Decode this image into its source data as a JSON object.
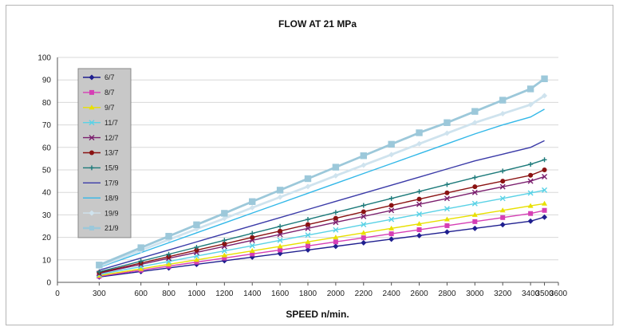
{
  "chart_data": {
    "type": "line",
    "title": "FLOW AT 21 MPa",
    "xlabel": "SPEED n/min.",
    "ylabel": "",
    "xlim": [
      0,
      3600
    ],
    "ylim": [
      0,
      100
    ],
    "x_ticks": [
      "0",
      "300",
      "600",
      "800",
      "1000",
      "1200",
      "1400",
      "1600",
      "1800",
      "2000",
      "2200",
      "2400",
      "2600",
      "2800",
      "3000",
      "3200",
      "3400",
      "3500",
      "3600"
    ],
    "y_ticks": [
      0,
      10,
      20,
      30,
      40,
      50,
      60,
      70,
      80,
      90,
      100
    ],
    "grid": "horizontal",
    "legend_position": "top-left",
    "x": [
      300,
      600,
      800,
      1000,
      1200,
      1400,
      1600,
      1800,
      2000,
      2200,
      2400,
      2600,
      2800,
      3000,
      3200,
      3400,
      3500
    ],
    "series": [
      {
        "name": "6/7",
        "color": "#1f1f8f",
        "marker": "diamond",
        "values": [
          2.4,
          4.8,
          6.4,
          8.0,
          9.6,
          11.2,
          12.8,
          14.4,
          16.0,
          17.6,
          19.2,
          20.8,
          22.4,
          24.0,
          25.6,
          27.2,
          29.0
        ]
      },
      {
        "name": "8/7",
        "color": "#d63fb5",
        "marker": "square",
        "values": [
          2.7,
          5.4,
          7.2,
          9.0,
          10.8,
          12.6,
          14.4,
          16.2,
          18.0,
          19.8,
          21.6,
          23.4,
          25.2,
          27.0,
          28.8,
          30.6,
          32.0
        ]
      },
      {
        "name": "9/7",
        "color": "#e8e000",
        "marker": "triangle",
        "values": [
          3.0,
          6.0,
          8.0,
          10.0,
          12.0,
          14.0,
          16.0,
          18.0,
          20.0,
          22.0,
          24.0,
          26.0,
          28.0,
          30.0,
          32.0,
          34.0,
          35.0
        ]
      },
      {
        "name": "11/7",
        "color": "#5ad2e6",
        "marker": "x",
        "values": [
          3.5,
          7.0,
          9.3,
          11.7,
          14.0,
          16.3,
          18.7,
          21.0,
          23.3,
          25.7,
          28.0,
          30.3,
          32.7,
          35.0,
          37.3,
          39.7,
          41.0
        ]
      },
      {
        "name": "12/7",
        "color": "#7b1f6e",
        "marker": "x",
        "values": [
          4.0,
          8.0,
          10.7,
          13.3,
          16.0,
          18.7,
          21.3,
          24.0,
          26.7,
          29.3,
          32.0,
          34.7,
          37.3,
          40.0,
          42.5,
          45.0,
          47.0
        ]
      },
      {
        "name": "13/7",
        "color": "#8a1212",
        "marker": "circle",
        "values": [
          4.3,
          8.6,
          11.4,
          14.3,
          17.1,
          20.0,
          22.8,
          25.7,
          28.5,
          31.4,
          34.2,
          37.0,
          39.8,
          42.5,
          45.0,
          47.6,
          50.0
        ]
      },
      {
        "name": "15/9",
        "color": "#1c7a7a",
        "marker": "plus",
        "values": [
          4.7,
          9.4,
          12.5,
          15.6,
          18.7,
          21.8,
          24.9,
          28.0,
          31.1,
          34.2,
          37.3,
          40.4,
          43.5,
          46.6,
          49.5,
          52.5,
          54.5
        ]
      },
      {
        "name": "17/9",
        "color": "#3b3ba8",
        "marker": "none",
        "values": [
          5.4,
          10.8,
          14.4,
          18.0,
          21.6,
          25.2,
          28.8,
          32.4,
          36.0,
          39.6,
          43.2,
          46.8,
          50.4,
          54.0,
          57.0,
          60.0,
          63.0
        ]
      },
      {
        "name": "18/9",
        "color": "#33b8e8",
        "marker": "none",
        "values": [
          6.6,
          13.2,
          17.6,
          22.0,
          26.4,
          30.8,
          35.2,
          39.6,
          44.0,
          48.4,
          52.8,
          57.2,
          61.6,
          66.0,
          70.0,
          73.5,
          77.0
        ]
      },
      {
        "name": "19/9",
        "color": "#cfe3ee",
        "marker": "diamond",
        "values": [
          7.1,
          14.2,
          19.0,
          23.7,
          28.4,
          33.2,
          37.9,
          42.6,
          47.4,
          52.1,
          56.8,
          61.6,
          66.3,
          71.0,
          75.0,
          79.0,
          83.0
        ]
      },
      {
        "name": "21/9",
        "color": "#9cc8da",
        "marker": "square",
        "values": [
          7.7,
          15.4,
          20.5,
          25.6,
          30.7,
          35.9,
          41.0,
          46.1,
          51.2,
          56.3,
          61.4,
          66.5,
          71.0,
          76.0,
          81.0,
          86.0,
          90.5
        ]
      }
    ]
  }
}
